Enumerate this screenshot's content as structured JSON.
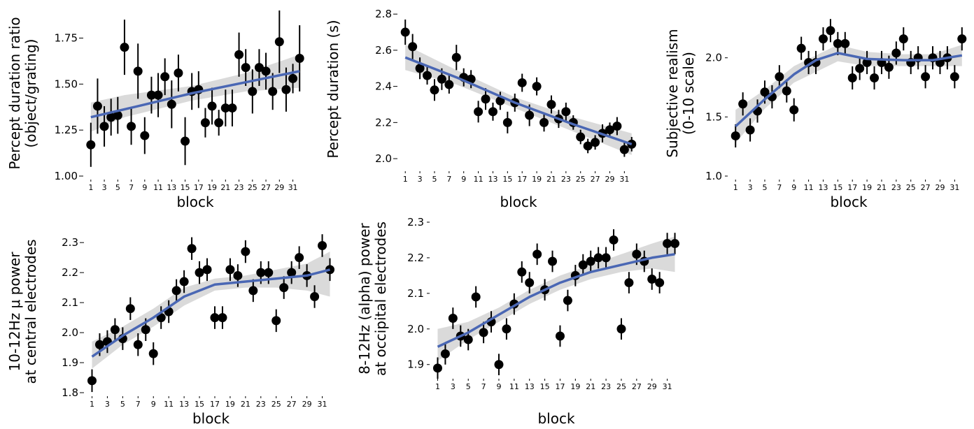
{
  "x_axis_label": "block",
  "chart_data": [
    {
      "type": "scatter",
      "title": "",
      "xlabel": "block",
      "ylabel": [
        "Percept duration ratio",
        "(object/grating)"
      ],
      "xlim": [
        0.5,
        32.5
      ],
      "ylim": [
        1.0,
        1.9
      ],
      "xticks": [
        1,
        3,
        5,
        7,
        9,
        11,
        13,
        15,
        17,
        19,
        21,
        23,
        25,
        27,
        29,
        31
      ],
      "yticks": [
        1.0,
        1.25,
        1.5,
        1.75
      ],
      "ytick_labels": [
        "1.00",
        "1.25",
        "1.50",
        "1.75"
      ],
      "ytick_dash": false,
      "series": [
        {
          "x": [
            1,
            2,
            3,
            4,
            5,
            6,
            7,
            8,
            9,
            10,
            11,
            12,
            13,
            14,
            15,
            16,
            17,
            18,
            19,
            20,
            21,
            22,
            23,
            24,
            25,
            26,
            27,
            28,
            29,
            30,
            31,
            32
          ],
          "y": [
            1.17,
            1.38,
            1.27,
            1.32,
            1.33,
            1.7,
            1.27,
            1.57,
            1.22,
            1.44,
            1.44,
            1.54,
            1.39,
            1.56,
            1.19,
            1.46,
            1.47,
            1.29,
            1.38,
            1.29,
            1.37,
            1.37,
            1.66,
            1.59,
            1.46,
            1.59,
            1.57,
            1.46,
            1.73,
            1.47,
            1.53,
            1.64
          ],
          "err": [
            0.12,
            0.15,
            0.11,
            0.1,
            0.1,
            0.15,
            0.1,
            0.15,
            0.1,
            0.1,
            0.12,
            0.1,
            0.13,
            0.1,
            0.13,
            0.1,
            0.1,
            0.08,
            0.1,
            0.07,
            0.1,
            0.1,
            0.12,
            0.1,
            0.12,
            0.1,
            0.1,
            0.1,
            0.17,
            0.12,
            0.08,
            0.18
          ]
        }
      ],
      "fit": [
        [
          1,
          1.32
        ],
        [
          8,
          1.38
        ],
        [
          16,
          1.45
        ],
        [
          24,
          1.51
        ],
        [
          32,
          1.57
        ]
      ],
      "band": [
        [
          1,
          1.24,
          1.4
        ],
        [
          6,
          1.32,
          1.44
        ],
        [
          16,
          1.41,
          1.49
        ],
        [
          24,
          1.46,
          1.56
        ],
        [
          32,
          1.48,
          1.66
        ]
      ],
      "colors": {
        "points": "#000000",
        "fit": "#4a67b4",
        "band": "#d3d3d3"
      }
    },
    {
      "type": "scatter",
      "title": "",
      "xlabel": "block",
      "ylabel": [
        "Percept duration (s)"
      ],
      "xlim": [
        0.5,
        32.5
      ],
      "ylim": [
        1.95,
        2.82
      ],
      "xticks": [
        1,
        3,
        5,
        7,
        9,
        11,
        13,
        15,
        17,
        19,
        21,
        23,
        25,
        27,
        29,
        31
      ],
      "yticks": [
        2.0,
        2.2,
        2.4,
        2.6,
        2.8
      ],
      "ytick_labels": [
        "2.0",
        "2.2",
        "2.4",
        "2.6",
        "2.8"
      ],
      "ytick_dash": false,
      "series": [
        {
          "x": [
            1,
            2,
            3,
            4,
            5,
            6,
            7,
            8,
            9,
            10,
            11,
            12,
            13,
            14,
            15,
            16,
            17,
            18,
            19,
            20,
            21,
            22,
            23,
            24,
            25,
            26,
            27,
            28,
            29,
            30,
            31,
            32
          ],
          "y": [
            2.7,
            2.62,
            2.5,
            2.46,
            2.38,
            2.44,
            2.41,
            2.56,
            2.45,
            2.44,
            2.26,
            2.33,
            2.26,
            2.32,
            2.2,
            2.31,
            2.42,
            2.24,
            2.4,
            2.2,
            2.3,
            2.22,
            2.26,
            2.2,
            2.12,
            2.07,
            2.09,
            2.14,
            2.16,
            2.18,
            2.05,
            2.08
          ],
          "err": [
            0.07,
            0.07,
            0.06,
            0.05,
            0.06,
            0.06,
            0.05,
            0.07,
            0.05,
            0.05,
            0.06,
            0.06,
            0.05,
            0.05,
            0.06,
            0.05,
            0.05,
            0.06,
            0.05,
            0.05,
            0.05,
            0.05,
            0.05,
            0.04,
            0.04,
            0.04,
            0.04,
            0.05,
            0.04,
            0.05,
            0.04,
            0.04
          ]
        }
      ],
      "fit": [
        [
          1,
          2.56
        ],
        [
          8,
          2.45
        ],
        [
          16,
          2.31
        ],
        [
          24,
          2.19
        ],
        [
          32,
          2.08
        ]
      ],
      "band": [
        [
          1,
          2.49,
          2.63
        ],
        [
          8,
          2.41,
          2.49
        ],
        [
          16,
          2.28,
          2.34
        ],
        [
          24,
          2.15,
          2.23
        ],
        [
          32,
          2.02,
          2.14
        ]
      ],
      "colors": {
        "points": "#000000",
        "fit": "#4a67b4",
        "band": "#d3d3d3"
      }
    },
    {
      "type": "scatter",
      "title": "",
      "xlabel": "block",
      "ylabel": [
        "Subjective realism",
        "(0-10 scale)"
      ],
      "xlim": [
        0.5,
        32.5
      ],
      "ylim": [
        1.0,
        2.4
      ],
      "xticks": [
        1,
        3,
        5,
        7,
        9,
        11,
        13,
        15,
        17,
        19,
        21,
        23,
        25,
        27,
        29,
        31
      ],
      "yticks": [
        1.0,
        1.5,
        2.0
      ],
      "ytick_labels": [
        "1.0",
        "1.5",
        "2.0"
      ],
      "ytick_dash": true,
      "series": [
        {
          "x": [
            1,
            2,
            3,
            4,
            5,
            6,
            7,
            8,
            9,
            10,
            11,
            12,
            13,
            14,
            15,
            16,
            17,
            18,
            19,
            20,
            21,
            22,
            23,
            24,
            25,
            26,
            27,
            28,
            29,
            30,
            31,
            32
          ],
          "y": [
            1.34,
            1.61,
            1.39,
            1.55,
            1.71,
            1.67,
            1.84,
            1.72,
            1.56,
            2.08,
            1.96,
            1.96,
            2.16,
            2.23,
            2.12,
            2.12,
            1.83,
            1.91,
            1.96,
            1.83,
            1.96,
            1.92,
            2.04,
            2.16,
            1.96,
            2.0,
            1.84,
            2.0,
            1.96,
            2.0,
            1.84,
            2.16
          ]
        }
      ],
      "fit": [
        [
          1,
          1.42
        ],
        [
          5,
          1.65
        ],
        [
          9,
          1.86
        ],
        [
          12,
          1.98
        ],
        [
          15,
          2.04
        ],
        [
          19,
          1.99
        ],
        [
          24,
          1.98
        ],
        [
          28,
          1.98
        ],
        [
          32,
          2.02
        ]
      ],
      "band": [
        [
          1,
          1.28,
          1.56
        ],
        [
          5,
          1.57,
          1.73
        ],
        [
          9,
          1.79,
          1.93
        ],
        [
          15,
          1.97,
          2.11
        ],
        [
          19,
          1.93,
          2.05
        ],
        [
          24,
          1.93,
          2.03
        ],
        [
          28,
          1.93,
          2.03
        ],
        [
          32,
          1.93,
          2.11
        ]
      ],
      "colors": {
        "points": "#000000",
        "fit": "#4a67b4",
        "band": "#d3d3d3"
      }
    },
    {
      "type": "scatter",
      "title": "",
      "xlabel": "block",
      "ylabel": [
        "10-12Hz μ power",
        "at central electrodes"
      ],
      "xlim": [
        0.5,
        32.5
      ],
      "ylim": [
        1.8,
        2.34
      ],
      "xticks": [
        1,
        3,
        5,
        7,
        9,
        11,
        13,
        15,
        17,
        19,
        21,
        23,
        25,
        27,
        29,
        31
      ],
      "yticks": [
        1.8,
        1.9,
        2.0,
        2.1,
        2.2,
        2.3
      ],
      "ytick_labels": [
        "1.8",
        "1.9",
        "2.0",
        "2.1",
        "2.2",
        "2.3"
      ],
      "ytick_dash": false,
      "series": [
        {
          "x": [
            1,
            2,
            3,
            4,
            5,
            6,
            7,
            8,
            9,
            10,
            11,
            12,
            13,
            14,
            15,
            16,
            17,
            18,
            19,
            20,
            21,
            22,
            23,
            24,
            25,
            26,
            27,
            28,
            29,
            30,
            31,
            32
          ],
          "y": [
            1.84,
            1.96,
            1.97,
            2.01,
            1.98,
            2.08,
            1.96,
            2.01,
            1.93,
            2.05,
            2.07,
            2.14,
            2.17,
            2.28,
            2.2,
            2.21,
            2.05,
            2.05,
            2.21,
            2.19,
            2.27,
            2.14,
            2.2,
            2.2,
            2.04,
            2.15,
            2.2,
            2.25,
            2.19,
            2.12,
            2.29,
            2.21
          ]
        }
      ],
      "fit": [
        [
          1,
          1.92
        ],
        [
          5,
          1.99
        ],
        [
          9,
          2.05
        ],
        [
          13,
          2.12
        ],
        [
          17,
          2.16
        ],
        [
          21,
          2.17
        ],
        [
          25,
          2.18
        ],
        [
          29,
          2.19
        ],
        [
          32,
          2.21
        ]
      ],
      "band": [
        [
          1,
          1.88,
          1.97
        ],
        [
          5,
          1.96,
          2.02
        ],
        [
          9,
          2.02,
          2.08
        ],
        [
          13,
          2.09,
          2.15
        ],
        [
          17,
          2.14,
          2.18
        ],
        [
          21,
          2.15,
          2.19
        ],
        [
          25,
          2.15,
          2.21
        ],
        [
          29,
          2.14,
          2.23
        ],
        [
          32,
          2.12,
          2.27
        ]
      ],
      "colors": {
        "points": "#000000",
        "fit": "#4a67b4",
        "band": "#d3d3d3"
      }
    },
    {
      "type": "scatter",
      "title": "",
      "xlabel": "block",
      "ylabel": [
        "8-12Hz (alpha) power",
        "at occipital electrodes"
      ],
      "xlim": [
        0.5,
        32.5
      ],
      "ylim": [
        1.87,
        2.3
      ],
      "xticks": [
        1,
        3,
        5,
        7,
        9,
        11,
        13,
        15,
        17,
        19,
        21,
        23,
        25,
        27,
        29,
        31
      ],
      "yticks": [
        1.9,
        2.0,
        2.1,
        2.2,
        2.3
      ],
      "ytick_labels": [
        "1.9",
        "2.0",
        "2.1",
        "2.2",
        "2.3"
      ],
      "ytick_dash": true,
      "series": [
        {
          "x": [
            1,
            2,
            3,
            4,
            5,
            6,
            7,
            8,
            9,
            10,
            11,
            12,
            13,
            14,
            15,
            16,
            17,
            18,
            19,
            20,
            21,
            22,
            23,
            24,
            25,
            26,
            27,
            28,
            29,
            30,
            31,
            32
          ],
          "y": [
            1.89,
            1.93,
            2.03,
            1.98,
            1.97,
            2.09,
            1.99,
            2.02,
            1.9,
            2.0,
            2.07,
            2.16,
            2.13,
            2.21,
            2.11,
            2.19,
            1.98,
            2.08,
            2.15,
            2.18,
            2.19,
            2.2,
            2.2,
            2.25,
            2.0,
            2.13,
            2.21,
            2.19,
            2.14,
            2.13,
            2.24,
            2.24
          ]
        }
      ],
      "fit": [
        [
          1,
          1.95
        ],
        [
          5,
          1.99
        ],
        [
          9,
          2.04
        ],
        [
          13,
          2.09
        ],
        [
          17,
          2.13
        ],
        [
          21,
          2.16
        ],
        [
          25,
          2.18
        ],
        [
          29,
          2.2
        ],
        [
          32,
          2.21
        ]
      ],
      "band": [
        [
          1,
          1.91,
          2.0
        ],
        [
          5,
          1.97,
          2.02
        ],
        [
          9,
          2.02,
          2.06
        ],
        [
          13,
          2.07,
          2.11
        ],
        [
          17,
          2.11,
          2.15
        ],
        [
          21,
          2.14,
          2.18
        ],
        [
          25,
          2.16,
          2.21
        ],
        [
          29,
          2.17,
          2.24
        ],
        [
          32,
          2.16,
          2.26
        ]
      ],
      "colors": {
        "points": "#000000",
        "fit": "#4a67b4",
        "band": "#d3d3d3"
      }
    }
  ]
}
